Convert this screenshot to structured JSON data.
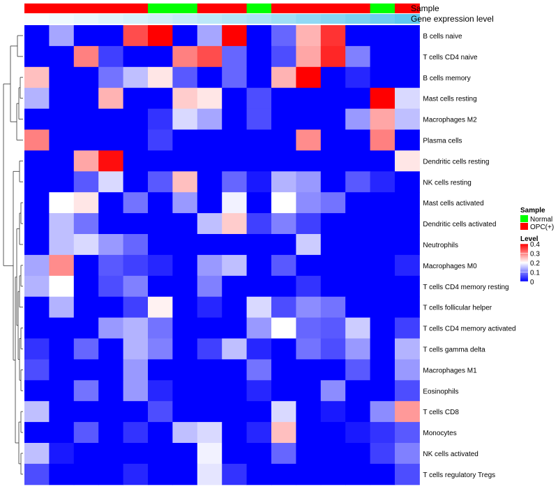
{
  "colors": {
    "low": "#0000FF",
    "mid": "#FFFFFF",
    "high": "#FF0000",
    "normal": "#00FF00",
    "opc": "#FF0000",
    "dendrogram": "#333333"
  },
  "chart_data": {
    "type": "heatmap",
    "title": "",
    "annotation_tracks": {
      "sample": {
        "label": "Sample",
        "values": [
          "OPC(+)",
          "OPC(+)",
          "OPC(+)",
          "OPC(+)",
          "OPC(+)",
          "Normal",
          "Normal",
          "OPC(+)",
          "OPC(+)",
          "Normal",
          "OPC(+)",
          "OPC(+)",
          "OPC(+)",
          "OPC(+)",
          "Normal",
          "OPC(+)"
        ]
      },
      "gene_expression_level": {
        "label": "Gene expression level",
        "values": [
          0.02,
          0.05,
          0.08,
          0.11,
          0.14,
          0.17,
          0.2,
          0.23,
          0.26,
          0.29,
          0.33,
          0.38,
          0.42,
          0.46,
          0.5,
          0.55
        ]
      }
    },
    "columns": 16,
    "rows": [
      "B cells naive",
      "T cells CD4 naive",
      "B cells memory",
      "Mast cells resting",
      "Macrophages M2",
      "Plasma cells",
      "Dendritic cells resting",
      "NK cells resting",
      "Mast cells activated",
      "Dendritic cells activated",
      "Neutrophils",
      "Macrophages M0",
      "T cells CD4 memory resting",
      "T cells follicular helper",
      "T cells CD4 memory activated",
      "T cells gamma delta",
      "Macrophages M1",
      "Eosinophils",
      "T cells CD8",
      "Monocytes",
      "NK cells activated",
      "T cells regulatory  Tregs"
    ],
    "values": [
      [
        0,
        0.13,
        0,
        0,
        0.34,
        0.4,
        0,
        0.13,
        0.4,
        0,
        0.08,
        0.26,
        0.36,
        0,
        0,
        0
      ],
      [
        0,
        0,
        0.3,
        0.05,
        0,
        0,
        0.3,
        0.34,
        0.08,
        0,
        0.06,
        0.27,
        0.37,
        0.1,
        0,
        0
      ],
      [
        0.25,
        0,
        0,
        0.09,
        0.15,
        0.22,
        0.07,
        0,
        0.08,
        0,
        0.26,
        0.4,
        0,
        0.03,
        0,
        0
      ],
      [
        0.14,
        0,
        0,
        0.26,
        0,
        0,
        0.24,
        0.22,
        0,
        0.06,
        0,
        0,
        0,
        0,
        0.4,
        0.17
      ],
      [
        0,
        0,
        0,
        0,
        0,
        0.04,
        0.17,
        0.13,
        0,
        0.06,
        0,
        0,
        0,
        0.12,
        0.27,
        0.15
      ],
      [
        0.3,
        0,
        0,
        0,
        0,
        0.05,
        0,
        0,
        0,
        0,
        0,
        0.29,
        0,
        0,
        0.3,
        0
      ],
      [
        0,
        0,
        0.27,
        0.39,
        0,
        0,
        0,
        0,
        0,
        0,
        0,
        0,
        0,
        0,
        0,
        0.22
      ],
      [
        0,
        0,
        0.07,
        0.17,
        0,
        0.07,
        0.25,
        0,
        0.08,
        0.02,
        0.14,
        0.12,
        0,
        0.07,
        0.03,
        0
      ],
      [
        0,
        0.2,
        0.22,
        0,
        0.09,
        0,
        0.12,
        0,
        0.19,
        0,
        0.2,
        0.11,
        0.09,
        0,
        0,
        0
      ],
      [
        0,
        0.15,
        0.09,
        0,
        0,
        0,
        0,
        0.15,
        0.24,
        0.05,
        0.1,
        0.05,
        0,
        0,
        0,
        0
      ],
      [
        0,
        0.15,
        0.17,
        0.12,
        0.08,
        0,
        0,
        0,
        0,
        0,
        0,
        0.16,
        0,
        0,
        0,
        0
      ],
      [
        0.13,
        0.29,
        0,
        0.07,
        0.05,
        0.03,
        0,
        0.12,
        0.15,
        0,
        0.07,
        0,
        0,
        0,
        0,
        0.03
      ],
      [
        0.14,
        0.2,
        0,
        0.06,
        0.1,
        0,
        0,
        0.1,
        0,
        0,
        0,
        0.04,
        0,
        0,
        0,
        0
      ],
      [
        0,
        0.14,
        0,
        0,
        0.05,
        0.21,
        0,
        0.03,
        0,
        0.17,
        0.06,
        0.11,
        0.09,
        0,
        0,
        0
      ],
      [
        0,
        0,
        0,
        0.12,
        0.14,
        0.09,
        0,
        0,
        0,
        0.12,
        0.2,
        0.08,
        0.07,
        0.16,
        0,
        0.05
      ],
      [
        0.04,
        0,
        0.08,
        0,
        0.14,
        0.1,
        0,
        0.05,
        0.15,
        0.03,
        0,
        0.09,
        0.06,
        0.12,
        0,
        0.14
      ],
      [
        0.06,
        0,
        0,
        0,
        0.12,
        0,
        0,
        0,
        0,
        0.09,
        0,
        0,
        0,
        0.07,
        0,
        0.12
      ],
      [
        0,
        0,
        0.09,
        0,
        0.12,
        0.03,
        0,
        0,
        0,
        0.03,
        0,
        0,
        0.11,
        0,
        0,
        0.06
      ],
      [
        0.15,
        0,
        0,
        0,
        0,
        0.06,
        0,
        0,
        0,
        0,
        0.17,
        0,
        0.02,
        0,
        0.11,
        0.28
      ],
      [
        0,
        0,
        0.07,
        0,
        0.04,
        0,
        0.15,
        0.17,
        0,
        0.03,
        0.25,
        0,
        0,
        0.02,
        0.04,
        0.07
      ],
      [
        0.15,
        0.02,
        0,
        0,
        0,
        0,
        0,
        0.19,
        0,
        0,
        0.08,
        0,
        0,
        0,
        0.05,
        0.1
      ],
      [
        0.06,
        0,
        0,
        0,
        0.03,
        0,
        0,
        0.18,
        0.04,
        0,
        0,
        0,
        0,
        0,
        0,
        0.06
      ]
    ],
    "scale": {
      "min": 0,
      "max": 0.4
    },
    "legend": {
      "placement": "right",
      "sample_title": "Sample",
      "sample_entries": [
        "Normal",
        "OPC(+)"
      ],
      "level_title": "Level",
      "level_ticks": [
        "0.4",
        "0.3",
        "0.2",
        "0.1",
        "0"
      ],
      "level_tick_values": [
        0.4,
        0.3,
        0.2,
        0.1,
        0
      ]
    }
  }
}
